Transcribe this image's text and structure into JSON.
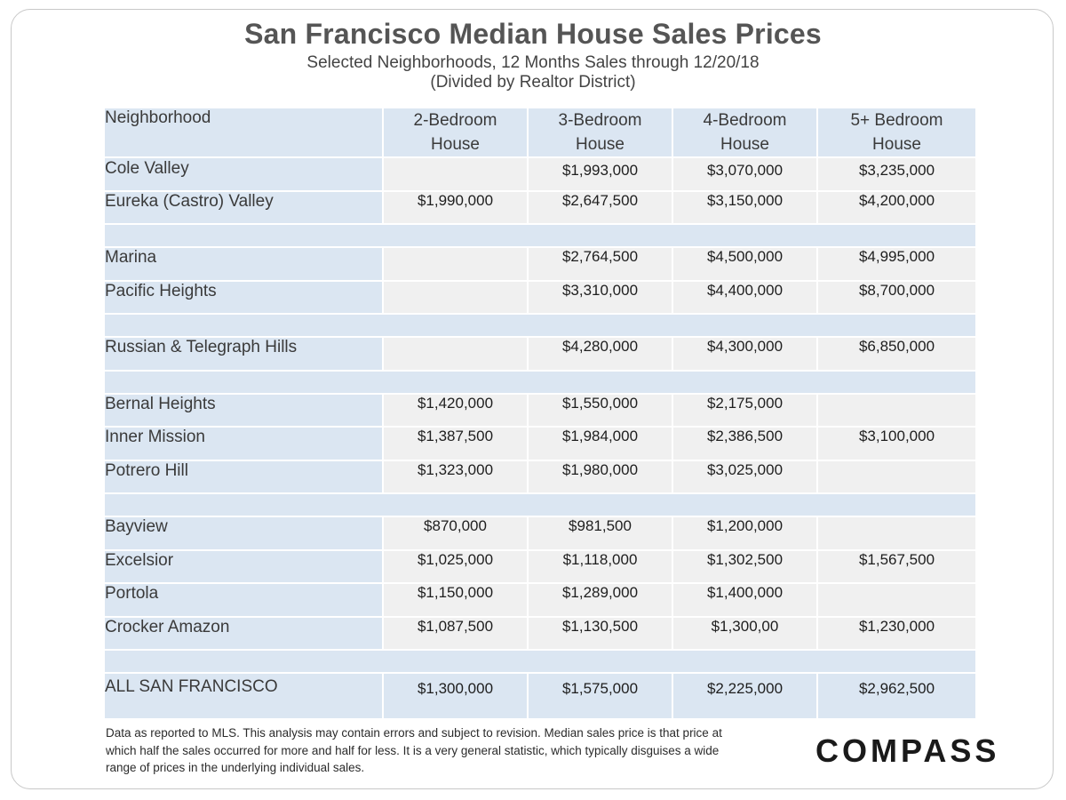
{
  "title": "San Francisco Median House Sales Prices",
  "subtitle_line1": "Selected Neighborhoods, 12 Months Sales through 12/20/18",
  "subtitle_line2": "(Divided by Realtor District)",
  "headers": {
    "neighborhood": "Neighborhood",
    "col1_a": "2-Bedroom",
    "col1_b": "House",
    "col2_a": "3-Bedroom",
    "col2_b": "House",
    "col3_a": "4-Bedroom",
    "col3_b": "House",
    "col4_a": "5+ Bedroom",
    "col4_b": "House"
  },
  "rows": [
    {
      "name": "Cole Valley",
      "v1": "",
      "v2": "$1,993,000",
      "v3": "$3,070,000",
      "v4": "$3,235,000"
    },
    {
      "name": "Eureka (Castro) Valley",
      "v1": "$1,990,000",
      "v2": "$2,647,500",
      "v3": "$3,150,000",
      "v4": "$4,200,000"
    },
    {
      "name": "Marina",
      "v1": "",
      "v2": "$2,764,500",
      "v3": "$4,500,000",
      "v4": "$4,995,000"
    },
    {
      "name": "Pacific Heights",
      "v1": "",
      "v2": "$3,310,000",
      "v3": "$4,400,000",
      "v4": "$8,700,000"
    },
    {
      "name": "Russian & Telegraph Hills",
      "v1": "",
      "v2": "$4,280,000",
      "v3": "$4,300,000",
      "v4": "$6,850,000"
    },
    {
      "name": "Bernal Heights",
      "v1": "$1,420,000",
      "v2": "$1,550,000",
      "v3": "$2,175,000",
      "v4": ""
    },
    {
      "name": "Inner Mission",
      "v1": "$1,387,500",
      "v2": "$1,984,000",
      "v3": "$2,386,500",
      "v4": "$3,100,000"
    },
    {
      "name": "Potrero Hill",
      "v1": "$1,323,000",
      "v2": "$1,980,000",
      "v3": "$3,025,000",
      "v4": ""
    },
    {
      "name": "Bayview",
      "v1": "$870,000",
      "v2": "$981,500",
      "v3": "$1,200,000",
      "v4": ""
    },
    {
      "name": "Excelsior",
      "v1": "$1,025,000",
      "v2": "$1,118,000",
      "v3": "$1,302,500",
      "v4": "$1,567,500"
    },
    {
      "name": "Portola",
      "v1": "$1,150,000",
      "v2": "$1,289,000",
      "v3": "$1,400,000",
      "v4": ""
    },
    {
      "name": "Crocker Amazon",
      "v1": "$1,087,500",
      "v2": "$1,130,500",
      "v3": "$1,300,00",
      "v4": "$1,230,000"
    }
  ],
  "total": {
    "name": "ALL SAN FRANCISCO",
    "v1": "$1,300,000",
    "v2": "$1,575,000",
    "v3": "$2,225,000",
    "v4": "$2,962,500"
  },
  "footnote_line1": "Data as reported to MLS.  This analysis may contain errors and subject to revision. Median sales price is that price at",
  "footnote_line2": "which half the sales occurred for more and half for less. It is a very general statistic, which typically disguises a wide",
  "footnote_line3": "range of prices in the underlying individual sales.",
  "logo": "COMPASS"
}
